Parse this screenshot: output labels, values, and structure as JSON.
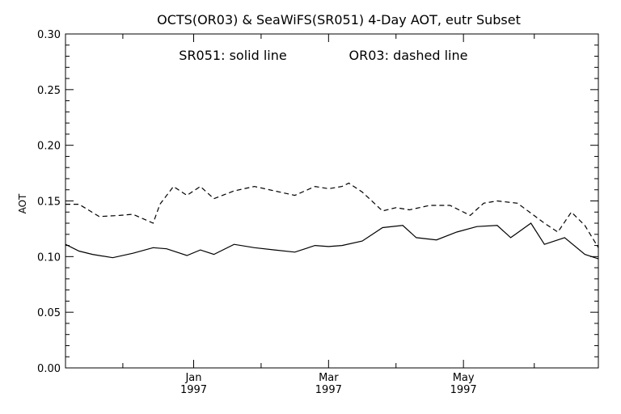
{
  "chart_data": {
    "type": "line",
    "title": "OCTS(OR03) & SeaWiFS(SR051) 4-Day AOT, eutr Subset",
    "annotation_solid": "SR051: solid line",
    "annotation_dashed": "OR03: dashed line",
    "ylabel": "AOT",
    "xlabel": "",
    "ylim": [
      0.0,
      0.3
    ],
    "xlim": [
      0,
      79
    ],
    "y_ticks": [
      "0.00",
      "0.05",
      "0.10",
      "0.15",
      "0.20",
      "0.25",
      "0.30"
    ],
    "x_major_ticks": [
      {
        "month": "Jan",
        "year": "1997",
        "pos": 19
      },
      {
        "month": "Mar",
        "year": "1997",
        "pos": 39
      },
      {
        "month": "May",
        "year": "1997",
        "pos": 59
      }
    ],
    "x_minor_ticks": [
      8.5,
      29,
      49,
      69.5
    ],
    "series": [
      {
        "name": "SR051",
        "style": "solid",
        "x": [
          0,
          2,
          4,
          7,
          10,
          13,
          15,
          18,
          20,
          22,
          25,
          28,
          31,
          34,
          37,
          39,
          41,
          44,
          47,
          50,
          52,
          55,
          58,
          61,
          64,
          66,
          69,
          71,
          74,
          77,
          79
        ],
        "values": [
          0.111,
          0.105,
          0.102,
          0.099,
          0.103,
          0.108,
          0.107,
          0.101,
          0.106,
          0.102,
          0.111,
          0.108,
          0.106,
          0.104,
          0.11,
          0.109,
          0.11,
          0.114,
          0.126,
          0.128,
          0.117,
          0.115,
          0.122,
          0.127,
          0.128,
          0.117,
          0.13,
          0.111,
          0.117,
          0.102,
          0.098
        ]
      },
      {
        "name": "OR03",
        "style": "dashed",
        "x": [
          0,
          2,
          5,
          8,
          10,
          13,
          14,
          16,
          18,
          20,
          22,
          25,
          28,
          31,
          34,
          37,
          39,
          41,
          42,
          44,
          47,
          49,
          51,
          54,
          57,
          60,
          62,
          64,
          67,
          69,
          71,
          73,
          75,
          77,
          79
        ],
        "values": [
          0.147,
          0.147,
          0.136,
          0.137,
          0.138,
          0.13,
          0.147,
          0.163,
          0.155,
          0.163,
          0.152,
          0.159,
          0.163,
          0.159,
          0.155,
          0.163,
          0.161,
          0.163,
          0.166,
          0.158,
          0.141,
          0.144,
          0.142,
          0.146,
          0.146,
          0.137,
          0.148,
          0.15,
          0.148,
          0.139,
          0.13,
          0.122,
          0.14,
          0.128,
          0.108
        ]
      }
    ],
    "grid": false,
    "legend": "none"
  }
}
